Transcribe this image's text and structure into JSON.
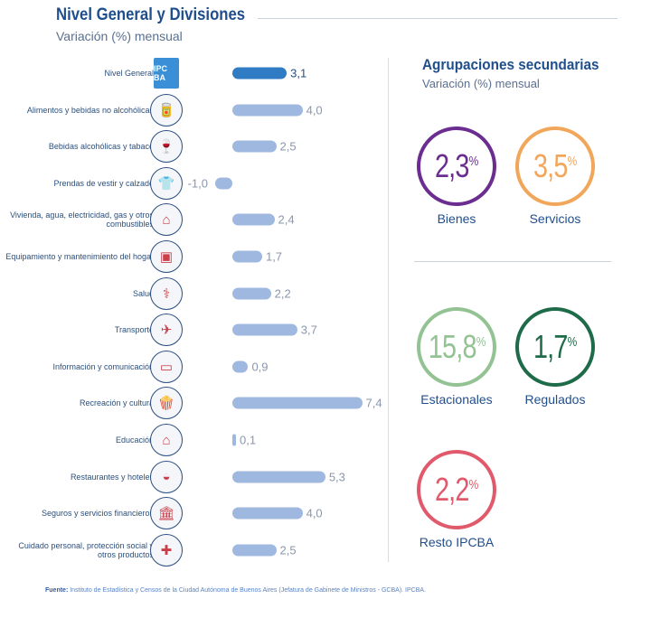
{
  "header": {
    "title": "Nivel General y Divisiones",
    "subtitle": "Variación (%) mensual"
  },
  "chart_data": {
    "type": "bar",
    "orientation": "horizontal",
    "title": "Nivel General y Divisiones",
    "subtitle": "Variación (%) mensual",
    "categories": [
      "Nivel General",
      "Alimentos y bebidas no alcohólicas",
      "Bebidas alcohólicas y tabaco",
      "Prendas de vestir y calzado",
      "Vivienda, agua, electricidad, gas y otros combustibles",
      "Equipamiento y mantenimiento del hogar",
      "Salud",
      "Transporte",
      "Información y comunicación",
      "Recreación y cultura",
      "Educación",
      "Restaurantes y hoteles",
      "Seguros y servicios financieros",
      "Cuidado personal, protección social y otros productos"
    ],
    "values": [
      3.1,
      4.0,
      2.5,
      -1.0,
      2.4,
      1.7,
      2.2,
      3.7,
      0.9,
      7.4,
      0.1,
      5.3,
      4.0,
      2.5
    ],
    "value_labels": [
      "3,1",
      "4,0",
      "2,5",
      "-1,0",
      "2,4",
      "1,7",
      "2,2",
      "3,7",
      "0,9",
      "7,4",
      "0,1",
      "5,3",
      "4,0",
      "2,5"
    ],
    "icons": [
      "ipc-ba-logo",
      "food-icon",
      "wine-icon",
      "clothing-icon",
      "house-icon",
      "appliance-icon",
      "doctor-icon",
      "transport-icon",
      "laptop-icon",
      "popcorn-icon",
      "school-icon",
      "cloche-icon",
      "bank-icon",
      "personal-care-icon"
    ],
    "colors": {
      "highlight": "#2f7bc4",
      "default": "#9fb8e0"
    }
  },
  "logo_text": "IPC BA",
  "secondary": {
    "title": "Agrupaciones secundarias",
    "subtitle": "Variación (%) mensual",
    "items": [
      {
        "value": "2,3",
        "unit": "%",
        "label": "Bienes",
        "color": "#6b2d8f"
      },
      {
        "value": "3,5",
        "unit": "%",
        "label": "Servicios",
        "color": "#f2a65a"
      },
      {
        "value": "15,8",
        "unit": "%",
        "label": "Estacionales",
        "color": "#93c293"
      },
      {
        "value": "1,7",
        "unit": "%",
        "label": "Regulados",
        "color": "#1e6b4a"
      },
      {
        "value": "2,2",
        "unit": "%",
        "label": "Resto IPCBA",
        "color": "#e05a6b"
      }
    ]
  },
  "source": {
    "label": "Fuente:",
    "text": " Instituto de Estadística y Censos de la Ciudad Autónoma de Buenos Aires (Jefatura de Gabinete de Ministros - GCBA). IPCBA."
  }
}
